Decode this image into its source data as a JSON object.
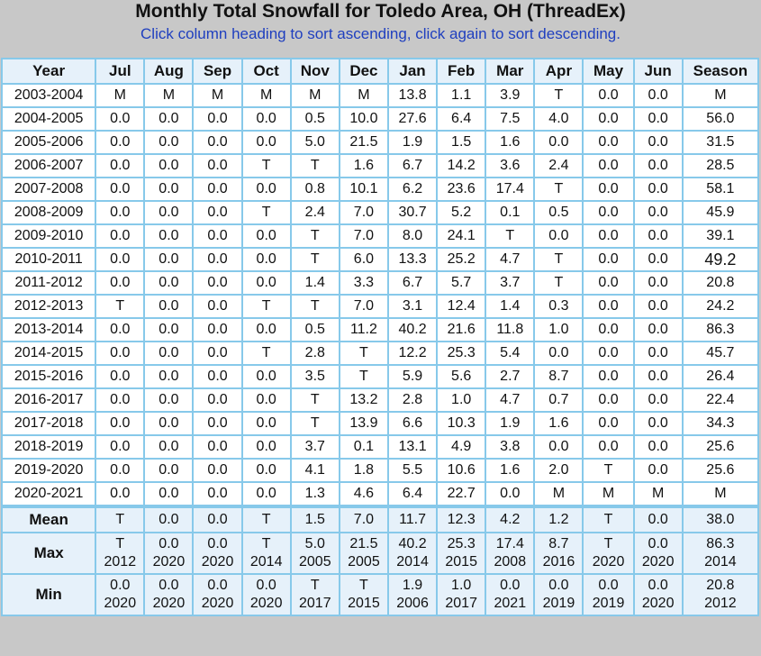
{
  "title": "Monthly Total Snowfall for Toledo Area, OH (ThreadEx)",
  "subtitle": "Click column heading to sort ascending, click again to sort descending.",
  "columns": [
    "Year",
    "Jul",
    "Aug",
    "Sep",
    "Oct",
    "Nov",
    "Dec",
    "Jan",
    "Feb",
    "Mar",
    "Apr",
    "May",
    "Jun",
    "Season"
  ],
  "rows": [
    [
      "2003-2004",
      "M",
      "M",
      "M",
      "M",
      "M",
      "M",
      "13.8",
      "1.1",
      "3.9",
      "T",
      "0.0",
      "0.0",
      "M"
    ],
    [
      "2004-2005",
      "0.0",
      "0.0",
      "0.0",
      "0.0",
      "0.5",
      "10.0",
      "27.6",
      "6.4",
      "7.5",
      "4.0",
      "0.0",
      "0.0",
      "56.0"
    ],
    [
      "2005-2006",
      "0.0",
      "0.0",
      "0.0",
      "0.0",
      "5.0",
      "21.5",
      "1.9",
      "1.5",
      "1.6",
      "0.0",
      "0.0",
      "0.0",
      "31.5"
    ],
    [
      "2006-2007",
      "0.0",
      "0.0",
      "0.0",
      "T",
      "T",
      "1.6",
      "6.7",
      "14.2",
      "3.6",
      "2.4",
      "0.0",
      "0.0",
      "28.5"
    ],
    [
      "2007-2008",
      "0.0",
      "0.0",
      "0.0",
      "0.0",
      "0.8",
      "10.1",
      "6.2",
      "23.6",
      "17.4",
      "T",
      "0.0",
      "0.0",
      "58.1"
    ],
    [
      "2008-2009",
      "0.0",
      "0.0",
      "0.0",
      "T",
      "2.4",
      "7.0",
      "30.7",
      "5.2",
      "0.1",
      "0.5",
      "0.0",
      "0.0",
      "45.9"
    ],
    [
      "2009-2010",
      "0.0",
      "0.0",
      "0.0",
      "0.0",
      "T",
      "7.0",
      "8.0",
      "24.1",
      "T",
      "0.0",
      "0.0",
      "0.0",
      "39.1"
    ],
    [
      "2010-2011",
      "0.0",
      "0.0",
      "0.0",
      "0.0",
      "T",
      "6.0",
      "13.3",
      "25.2",
      "4.7",
      "T",
      "0.0",
      "0.0",
      "49.2"
    ],
    [
      "2011-2012",
      "0.0",
      "0.0",
      "0.0",
      "0.0",
      "1.4",
      "3.3",
      "6.7",
      "5.7",
      "3.7",
      "T",
      "0.0",
      "0.0",
      "20.8"
    ],
    [
      "2012-2013",
      "T",
      "0.0",
      "0.0",
      "T",
      "T",
      "7.0",
      "3.1",
      "12.4",
      "1.4",
      "0.3",
      "0.0",
      "0.0",
      "24.2"
    ],
    [
      "2013-2014",
      "0.0",
      "0.0",
      "0.0",
      "0.0",
      "0.5",
      "11.2",
      "40.2",
      "21.6",
      "11.8",
      "1.0",
      "0.0",
      "0.0",
      "86.3"
    ],
    [
      "2014-2015",
      "0.0",
      "0.0",
      "0.0",
      "T",
      "2.8",
      "T",
      "12.2",
      "25.3",
      "5.4",
      "0.0",
      "0.0",
      "0.0",
      "45.7"
    ],
    [
      "2015-2016",
      "0.0",
      "0.0",
      "0.0",
      "0.0",
      "3.5",
      "T",
      "5.9",
      "5.6",
      "2.7",
      "8.7",
      "0.0",
      "0.0",
      "26.4"
    ],
    [
      "2016-2017",
      "0.0",
      "0.0",
      "0.0",
      "0.0",
      "T",
      "13.2",
      "2.8",
      "1.0",
      "4.7",
      "0.7",
      "0.0",
      "0.0",
      "22.4"
    ],
    [
      "2017-2018",
      "0.0",
      "0.0",
      "0.0",
      "0.0",
      "T",
      "13.9",
      "6.6",
      "10.3",
      "1.9",
      "1.6",
      "0.0",
      "0.0",
      "34.3"
    ],
    [
      "2018-2019",
      "0.0",
      "0.0",
      "0.0",
      "0.0",
      "3.7",
      "0.1",
      "13.1",
      "4.9",
      "3.8",
      "0.0",
      "0.0",
      "0.0",
      "25.6"
    ],
    [
      "2019-2020",
      "0.0",
      "0.0",
      "0.0",
      "0.0",
      "4.1",
      "1.8",
      "5.5",
      "10.6",
      "1.6",
      "2.0",
      "T",
      "0.0",
      "25.6"
    ],
    [
      "2020-2021",
      "0.0",
      "0.0",
      "0.0",
      "0.0",
      "1.3",
      "4.6",
      "6.4",
      "22.7",
      "0.0",
      "M",
      "M",
      "M",
      "M"
    ]
  ],
  "summary": {
    "mean": {
      "label": "Mean",
      "values": [
        "T",
        "0.0",
        "0.0",
        "T",
        "1.5",
        "7.0",
        "11.7",
        "12.3",
        "4.2",
        "1.2",
        "T",
        "0.0",
        "38.0"
      ]
    },
    "max": {
      "label": "Max",
      "values": [
        "T",
        "0.0",
        "0.0",
        "T",
        "5.0",
        "21.5",
        "40.2",
        "25.3",
        "17.4",
        "8.7",
        "T",
        "0.0",
        "86.3"
      ],
      "years": [
        "2012",
        "2020",
        "2020",
        "2014",
        "2005",
        "2005",
        "2014",
        "2015",
        "2008",
        "2016",
        "2020",
        "2020",
        "2014"
      ]
    },
    "min": {
      "label": "Min",
      "values": [
        "0.0",
        "0.0",
        "0.0",
        "0.0",
        "T",
        "T",
        "1.9",
        "1.0",
        "0.0",
        "0.0",
        "0.0",
        "0.0",
        "20.8"
      ],
      "years": [
        "2020",
        "2020",
        "2020",
        "2020",
        "2017",
        "2015",
        "2006",
        "2017",
        "2021",
        "2019",
        "2019",
        "2020",
        "2012"
      ]
    }
  },
  "colors": {
    "border": "#87c9ea",
    "header_bg": "#e6f1fa",
    "subtitle": "#1f3fbf",
    "page_bg": "#c8c8c8"
  }
}
